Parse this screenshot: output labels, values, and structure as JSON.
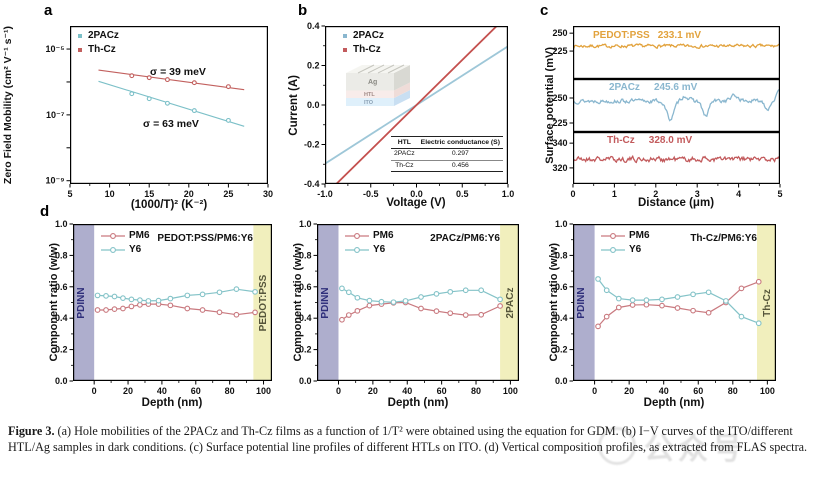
{
  "figure": {
    "caption_label": "Figure 3.",
    "caption_text": " (a) Hole mobilities of the 2PACz and Th-Cz films as a function of 1/T² were obtained using the equation for GDM. (b) I−V curves of the ITO/different HTL/Ag samples in dark conditions. (c) Surface potential line profiles of different HTLs on ITO. (d) Vertical composition profiles, as extracted from FLAS spectra.",
    "watermark": "公众号"
  },
  "colors": {
    "teal": "#7cc0c8",
    "red": "#c2605e",
    "pm6": "#c9797f",
    "y6": "#84c3c8",
    "orange": "#e2a23c",
    "blue": "#8ab7cf",
    "dark_red": "#c25a5c",
    "band_purple": "#aeaecd",
    "band_yellow": "#f1efbd"
  },
  "panels": {
    "letters": {
      "a": "a",
      "b": "b",
      "c": "c",
      "d": "d"
    },
    "a": {
      "legend": [
        "2PACz",
        "Th-Cz"
      ],
      "sigma_thcz": "σ = 39 meV",
      "sigma_2pacz": "σ = 63 meV"
    },
    "b": {
      "legend": [
        "2PACz",
        "Th-Cz"
      ],
      "inset_layers": [
        "Ag",
        "HTL",
        "ITO"
      ]
    },
    "d": {
      "legend": [
        "PM6",
        "Y6"
      ]
    }
  },
  "chart_data": [
    {
      "id": "a",
      "type": "scatter",
      "xlabel": "(1000/T)² (K⁻²)",
      "ylabel": "Zero Field Mobility (cm² V⁻¹ s⁻¹)",
      "xlim": [
        5,
        30
      ],
      "ylog": true,
      "ylim": [
        -9.1,
        -4.3
      ],
      "xticks": {
        "v": [
          5,
          10,
          15,
          20,
          25,
          30
        ],
        "l": [
          "5",
          "10",
          "15",
          "20",
          "25",
          "30"
        ]
      },
      "xminor": [
        7.5,
        12.5,
        17.5,
        22.5,
        27.5
      ],
      "yticks": {
        "v": [
          -5,
          -6,
          -7,
          -8,
          -9
        ],
        "l": [
          "10⁻⁵",
          "",
          "10⁻⁷",
          "",
          "10⁻⁹"
        ]
      },
      "series": [
        {
          "name": "Th-Cz fit",
          "color": "#c2605e",
          "lw": 1.1,
          "x": [
            8.6,
            27
          ],
          "y": [
            2.3e-06,
            5.8e-07
          ]
        },
        {
          "name": "Th-Cz",
          "color": "#c2605e",
          "line": false,
          "marker": true,
          "ms": 1.9,
          "x": [
            12.8,
            15,
            17.3,
            20.7,
            25
          ],
          "y": [
            1.55e-06,
            1.35e-06,
            1.18e-06,
            9.5e-07,
            7.2e-07
          ]
        },
        {
          "name": "2PACz fit",
          "color": "#7cc0c8",
          "lw": 1.1,
          "x": [
            8.6,
            27
          ],
          "y": [
            1.05e-06,
            4.5e-08
          ]
        },
        {
          "name": "2PACz",
          "color": "#7cc0c8",
          "line": false,
          "marker": true,
          "ms": 1.9,
          "x": [
            12.8,
            15,
            17.3,
            20.7,
            25
          ],
          "y": [
            4.4e-07,
            3.1e-07,
            2.25e-07,
            1.35e-07,
            6.8e-08
          ]
        }
      ]
    },
    {
      "id": "b",
      "type": "line",
      "xlabel": "Voltage (V)",
      "ylabel": "Current (A)",
      "xlim": [
        -1,
        1
      ],
      "ylim": [
        -0.4,
        0.4
      ],
      "xticks": {
        "v": [
          -1,
          -0.5,
          0,
          0.5,
          1
        ],
        "l": [
          "-1.0",
          "-0.5",
          "0.0",
          "0.5",
          "1.0"
        ]
      },
      "xminor": [
        -0.75,
        -0.25,
        0.25,
        0.75
      ],
      "yticks": {
        "v": [
          -0.4,
          -0.2,
          0,
          0.2,
          0.4
        ],
        "l": [
          "-0.4",
          "-0.2",
          "0.0",
          "0.2",
          "0.4"
        ]
      },
      "yminor": [
        -0.3,
        -0.1,
        0.1,
        0.3
      ],
      "series": [
        {
          "name": "2PACz",
          "color": "#9ec7d8",
          "lw": 1.8,
          "x": [
            -1,
            1
          ],
          "y": [
            -0.297,
            0.297
          ]
        },
        {
          "name": "Th-Cz",
          "color": "#c4504e",
          "lw": 1.8,
          "x": [
            -1,
            1
          ],
          "y": [
            -0.456,
            0.456
          ]
        }
      ]
    },
    {
      "id": "c1",
      "type": "line",
      "label": "PEDOT:PSS",
      "value": "233.1 mV",
      "ylabel": "Surface potential (mV)",
      "xlim": [
        0,
        5
      ],
      "ylim": [
        186,
        260
      ],
      "yticks": {
        "v": [
          225,
          250
        ],
        "l": [
          "225",
          "250"
        ]
      },
      "series": [
        {
          "name": "PEDOT:PSS",
          "color": "#e2a23c",
          "lw": 1.3,
          "noise": {
            "seed": 7,
            "base": 232,
            "amp": 1.9,
            "n": 230,
            "x0": 0,
            "x1": 5
          }
        }
      ]
    },
    {
      "id": "c2",
      "type": "line",
      "label": "2PACz",
      "value": "245.6 mV",
      "xlim": [
        0,
        5
      ],
      "ylim": [
        216,
        269
      ],
      "yticks": {
        "v": [
          225,
          250
        ],
        "l": [
          "225",
          "250"
        ]
      },
      "series": [
        {
          "name": "2PACz",
          "color": "#8ab7cf",
          "lw": 1.3,
          "noise": {
            "seed": 13,
            "base": 247,
            "amp": 1.7,
            "n": 230,
            "x0": 0,
            "x1": 5,
            "bumps": [
              {
                "x": 2.35,
                "a": -18,
                "w": 0.13
              },
              {
                "x": 2.7,
                "a": 5,
                "w": 0.12
              },
              {
                "x": 3.2,
                "a": -16,
                "w": 0.1
              },
              {
                "x": 3.9,
                "a": 5,
                "w": 0.14
              },
              {
                "x": 4.7,
                "a": -8,
                "w": 0.08
              },
              {
                "x": 5.0,
                "a": 9,
                "w": 0.12
              }
            ]
          }
        }
      ]
    },
    {
      "id": "c3",
      "type": "line",
      "label": "Th-Cz",
      "value": "328.0 mV",
      "xlabel": "Distance (μm)",
      "xlim": [
        0,
        5
      ],
      "ylim": [
        307,
        349
      ],
      "xticks": {
        "v": [
          0,
          1,
          2,
          3,
          4,
          5
        ],
        "l": [
          "0",
          "1",
          "2",
          "3",
          "4",
          "5"
        ]
      },
      "xminor": [
        0.5,
        1.5,
        2.5,
        3.5,
        4.5
      ],
      "yticks": {
        "v": [
          320,
          340
        ],
        "l": [
          "320",
          "340"
        ]
      },
      "series": [
        {
          "name": "Th-Cz",
          "color": "#c25a5c",
          "lw": 1.3,
          "noise": {
            "seed": 21,
            "base": 327,
            "amp": 1.8,
            "n": 230,
            "x0": 0,
            "x1": 5
          }
        }
      ]
    },
    {
      "id": "d1",
      "type": "line",
      "title": "PEDOT:PSS/PM6:Y6",
      "xlabel": "Depth (nm)",
      "ylabel": "Component ratio (w/w)",
      "band_left_label": "PDINN",
      "band_right_label": "PEDOT:PSS",
      "xlim": [
        -12.5,
        105
      ],
      "ylim": [
        0,
        1
      ],
      "bands": [
        {
          "x0": -12.5,
          "x1": 0,
          "color": "#aeaecd"
        },
        {
          "x0": 94,
          "x1": 105,
          "color": "#f1efbd"
        }
      ],
      "xticks": {
        "v": [
          0,
          20,
          40,
          60,
          80,
          100
        ],
        "l": [
          "0",
          "20",
          "40",
          "60",
          "80",
          "100"
        ]
      },
      "xminor": [
        10,
        30,
        50,
        70,
        90
      ],
      "yticks": {
        "v": [
          0,
          0.2,
          0.4,
          0.6,
          0.8,
          1
        ],
        "l": [
          "0.0",
          "0.2",
          "0.4",
          "0.6",
          "0.8",
          "1.0"
        ]
      },
      "yminor": [
        0.1,
        0.3,
        0.5,
        0.7,
        0.9
      ],
      "series": [
        {
          "name": "PM6",
          "color": "#c9797f",
          "lw": 1.2,
          "marker": true,
          "ms": 2.3,
          "x": [
            2,
            7,
            12,
            17,
            22,
            27,
            32,
            38,
            45,
            55,
            64,
            74,
            84,
            95
          ],
          "y": [
            0.452,
            0.452,
            0.458,
            0.462,
            0.475,
            0.485,
            0.49,
            0.49,
            0.482,
            0.462,
            0.452,
            0.438,
            0.422,
            0.437
          ]
        },
        {
          "name": "Y6",
          "color": "#84c3c8",
          "lw": 1.2,
          "marker": true,
          "ms": 2.3,
          "x": [
            2,
            7,
            12,
            17,
            22,
            27,
            32,
            38,
            45,
            55,
            64,
            74,
            84,
            95
          ],
          "y": [
            0.545,
            0.542,
            0.538,
            0.528,
            0.52,
            0.515,
            0.51,
            0.512,
            0.525,
            0.545,
            0.552,
            0.565,
            0.585,
            0.568
          ]
        }
      ]
    },
    {
      "id": "d2",
      "type": "line",
      "title": "2PACz/PM6:Y6",
      "xlabel": "Depth (nm)",
      "ylabel": "Component ratio (w/w)",
      "band_left_label": "PDINN",
      "band_right_label": "2PACz",
      "xlim": [
        -12.5,
        105
      ],
      "ylim": [
        0,
        1
      ],
      "bands": [
        {
          "x0": -12.5,
          "x1": 0,
          "color": "#aeaecd"
        },
        {
          "x0": 94,
          "x1": 105,
          "color": "#f1efbd"
        }
      ],
      "xticks": {
        "v": [
          0,
          20,
          40,
          60,
          80,
          100
        ],
        "l": [
          "0",
          "20",
          "40",
          "60",
          "80",
          "100"
        ]
      },
      "xminor": [
        10,
        30,
        50,
        70,
        90
      ],
      "yticks": {
        "v": [
          0,
          0.2,
          0.4,
          0.6,
          0.8,
          1
        ],
        "l": [
          "0.0",
          "0.2",
          "0.4",
          "0.6",
          "0.8",
          "1.0"
        ]
      },
      "yminor": [
        0.1,
        0.3,
        0.5,
        0.7,
        0.9
      ],
      "series": [
        {
          "name": "PM6",
          "color": "#c9797f",
          "lw": 1.2,
          "marker": true,
          "ms": 2.3,
          "x": [
            2,
            6,
            11,
            18,
            25,
            32,
            39,
            48,
            57,
            65,
            74,
            83,
            94
          ],
          "y": [
            0.39,
            0.42,
            0.447,
            0.48,
            0.49,
            0.498,
            0.5,
            0.462,
            0.445,
            0.432,
            0.42,
            0.422,
            0.478
          ]
        },
        {
          "name": "Y6",
          "color": "#84c3c8",
          "lw": 1.2,
          "marker": true,
          "ms": 2.3,
          "x": [
            2,
            6,
            11,
            18,
            25,
            32,
            39,
            48,
            57,
            65,
            74,
            83,
            94
          ],
          "y": [
            0.59,
            0.565,
            0.53,
            0.512,
            0.505,
            0.502,
            0.51,
            0.535,
            0.555,
            0.568,
            0.578,
            0.578,
            0.52
          ]
        }
      ]
    },
    {
      "id": "d3",
      "type": "line",
      "title": "Th-Cz/PM6:Y6",
      "xlabel": "Depth (nm)",
      "ylabel": "Component ratio (w/w)",
      "band_left_label": "PDINN",
      "band_right_label": "Th-Cz",
      "xlim": [
        -12.5,
        105
      ],
      "ylim": [
        0,
        1
      ],
      "bands": [
        {
          "x0": -12.5,
          "x1": 0,
          "color": "#aeaecd"
        },
        {
          "x0": 94,
          "x1": 105,
          "color": "#f1efbd"
        }
      ],
      "xticks": {
        "v": [
          0,
          20,
          40,
          60,
          80,
          100
        ],
        "l": [
          "0",
          "20",
          "40",
          "60",
          "80",
          "100"
        ]
      },
      "xminor": [
        10,
        30,
        50,
        70,
        90
      ],
      "yticks": {
        "v": [
          0,
          0.2,
          0.4,
          0.6,
          0.8,
          1
        ],
        "l": [
          "0.0",
          "0.2",
          "0.4",
          "0.6",
          "0.8",
          "1.0"
        ]
      },
      "yminor": [
        0.1,
        0.3,
        0.5,
        0.7,
        0.9
      ],
      "series": [
        {
          "name": "PM6",
          "color": "#c9797f",
          "lw": 1.2,
          "marker": true,
          "ms": 2.3,
          "x": [
            2,
            7,
            14,
            22,
            30,
            39,
            48,
            57,
            66,
            76,
            85,
            95
          ],
          "y": [
            0.348,
            0.41,
            0.468,
            0.484,
            0.486,
            0.48,
            0.465,
            0.448,
            0.435,
            0.5,
            0.59,
            0.632
          ]
        },
        {
          "name": "Y6",
          "color": "#84c3c8",
          "lw": 1.2,
          "marker": true,
          "ms": 2.3,
          "x": [
            2,
            7,
            14,
            22,
            30,
            39,
            48,
            57,
            66,
            76,
            85,
            95
          ],
          "y": [
            0.65,
            0.578,
            0.525,
            0.515,
            0.515,
            0.52,
            0.535,
            0.552,
            0.565,
            0.51,
            0.41,
            0.368
          ]
        }
      ]
    },
    {
      "id": "b-table",
      "type": "table",
      "col1": "HTL",
      "col2": "Electric conductance (S)",
      "rows": [
        [
          "2PACz",
          "0.297"
        ],
        [
          "Th-Cz",
          "0.456"
        ]
      ]
    }
  ]
}
